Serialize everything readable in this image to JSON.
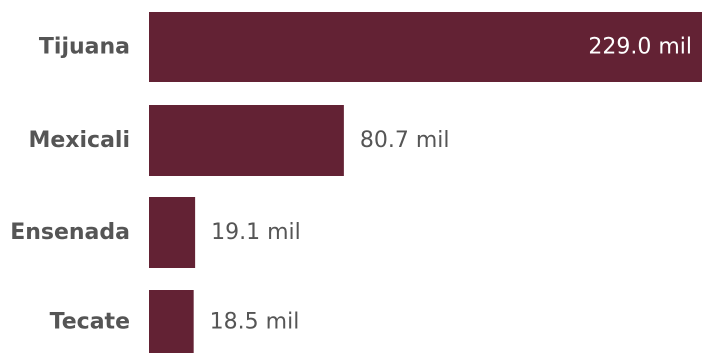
{
  "chart_data": {
    "type": "bar",
    "orientation": "horizontal",
    "categories": [
      "Tijuana",
      "Mexicali",
      "Ensenada",
      "Tecate"
    ],
    "values": [
      229.0,
      80.7,
      19.1,
      18.5
    ],
    "value_labels": [
      "229.0 mil",
      "80.7 mil",
      "19.1 mil",
      "18.5 mil"
    ],
    "title": "",
    "xlabel": "",
    "ylabel": "",
    "xlim": [
      0,
      229.0
    ],
    "grid": false,
    "legend": "none"
  },
  "colors": {
    "bar": "#632234",
    "label": "#555555",
    "value_outside": "#555555",
    "value_inside": "#ffffff"
  }
}
